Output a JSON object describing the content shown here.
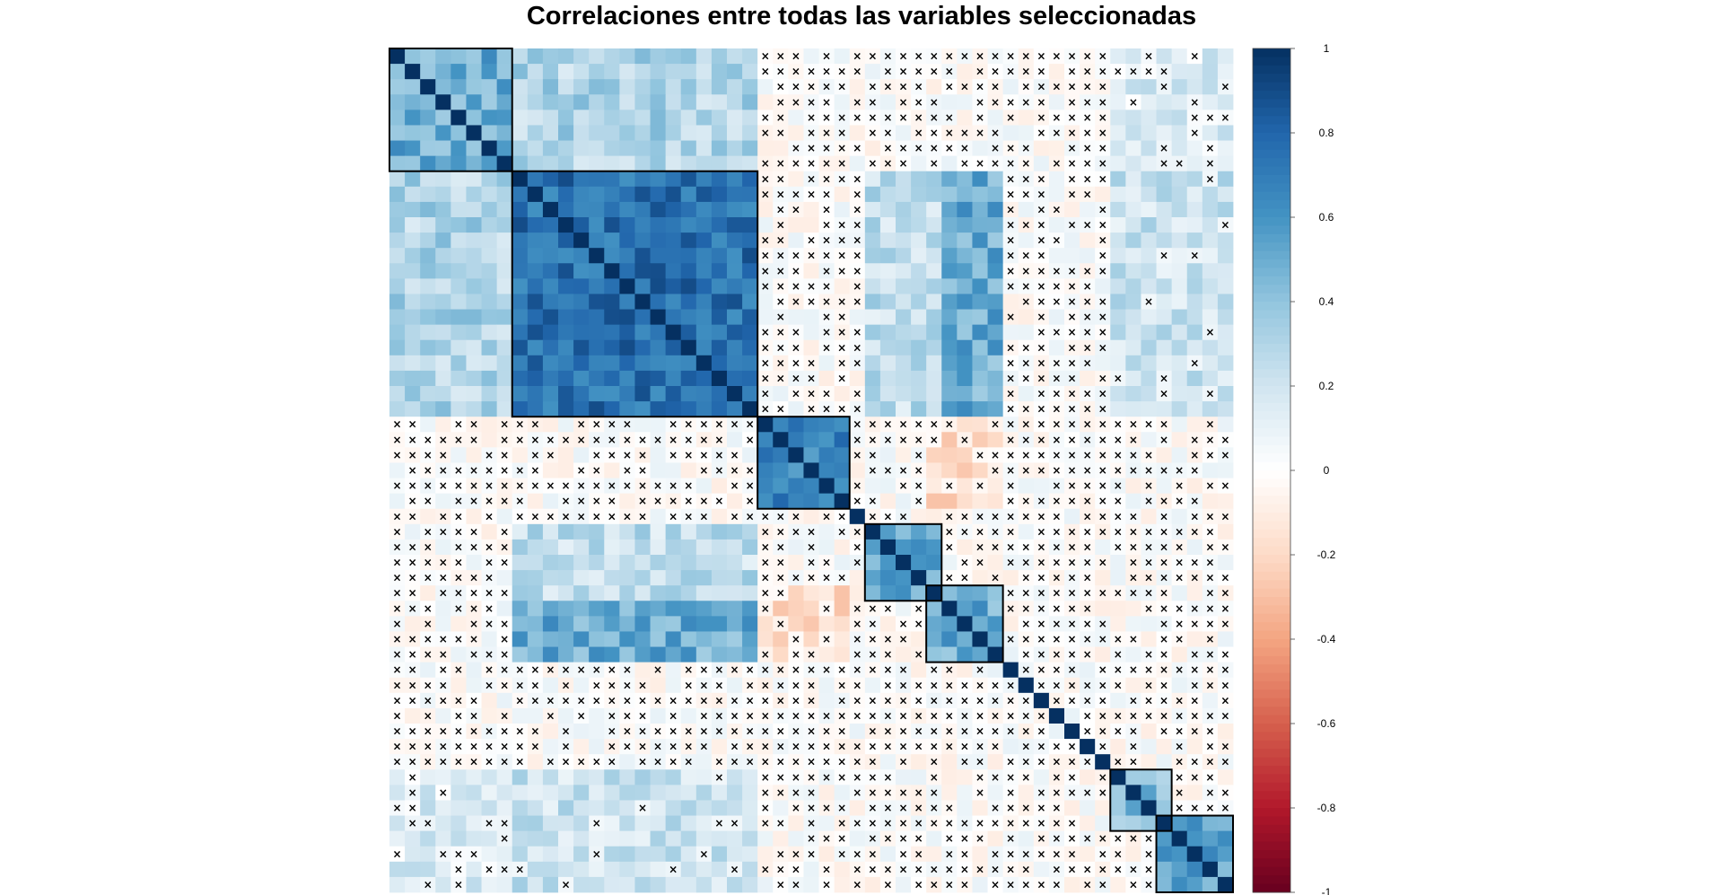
{
  "chart_data": {
    "type": "heatmap",
    "title": "Correlaciones entre todas las variables seleccionadas",
    "n_vars": 55,
    "value_range": [
      -1,
      1
    ],
    "colorbar_ticks": [
      "1",
      "0.8",
      "0.6",
      "0.4",
      "0.2",
      "0",
      "-0.2",
      "-0.4",
      "-0.6",
      "-0.8",
      "-1"
    ],
    "colorbar_values": [
      1,
      0.8,
      0.6,
      0.4,
      0.2,
      0,
      -0.2,
      -0.4,
      -0.6,
      -0.8,
      -1
    ],
    "palette": [
      "#67001f",
      "#b2182b",
      "#d6604d",
      "#f4a582",
      "#fddbc7",
      "#ffffff",
      "#d1e5f0",
      "#92c5de",
      "#4393c3",
      "#2166ac",
      "#053061"
    ],
    "insignificant_marker": "×",
    "clusters": [
      [
        0,
        7
      ],
      [
        8,
        23
      ],
      [
        24,
        29
      ],
      [
        31,
        35
      ],
      [
        35,
        39
      ],
      [
        47,
        50
      ],
      [
        50,
        54
      ]
    ],
    "blocks": [
      {
        "rows": [
          0,
          7
        ],
        "cols": [
          0,
          7
        ],
        "r": 0.5
      },
      {
        "rows": [
          8,
          23
        ],
        "cols": [
          8,
          23
        ],
        "r": 0.75
      },
      {
        "rows": [
          24,
          29
        ],
        "cols": [
          24,
          29
        ],
        "r": 0.65
      },
      {
        "rows": [
          31,
          35
        ],
        "cols": [
          31,
          35
        ],
        "r": 0.5
      },
      {
        "rows": [
          35,
          39
        ],
        "cols": [
          35,
          39
        ],
        "r": 0.5
      },
      {
        "rows": [
          47,
          50
        ],
        "cols": [
          47,
          50
        ],
        "r": 0.4
      },
      {
        "rows": [
          50,
          54
        ],
        "cols": [
          50,
          54
        ],
        "r": 0.55
      },
      {
        "rows": [
          0,
          7
        ],
        "cols": [
          8,
          23
        ],
        "r": 0.3
      },
      {
        "rows": [
          8,
          23
        ],
        "cols": [
          31,
          35
        ],
        "r": 0.25
      },
      {
        "rows": [
          8,
          23
        ],
        "cols": [
          35,
          39
        ],
        "r": 0.5
      },
      {
        "rows": [
          8,
          23
        ],
        "cols": [
          47,
          54
        ],
        "r": 0.2
      },
      {
        "rows": [
          0,
          7
        ],
        "cols": [
          47,
          54
        ],
        "r": 0.15
      },
      {
        "rows": [
          24,
          29
        ],
        "cols": [
          35,
          39
        ],
        "r": -0.15
      },
      {
        "rows": [
          47,
          50
        ],
        "cols": [
          8,
          23
        ],
        "r": 0.15
      },
      {
        "rows": [
          50,
          54
        ],
        "cols": [
          0,
          23
        ],
        "r": 0.2
      }
    ],
    "significance_threshold": 0.08
  }
}
